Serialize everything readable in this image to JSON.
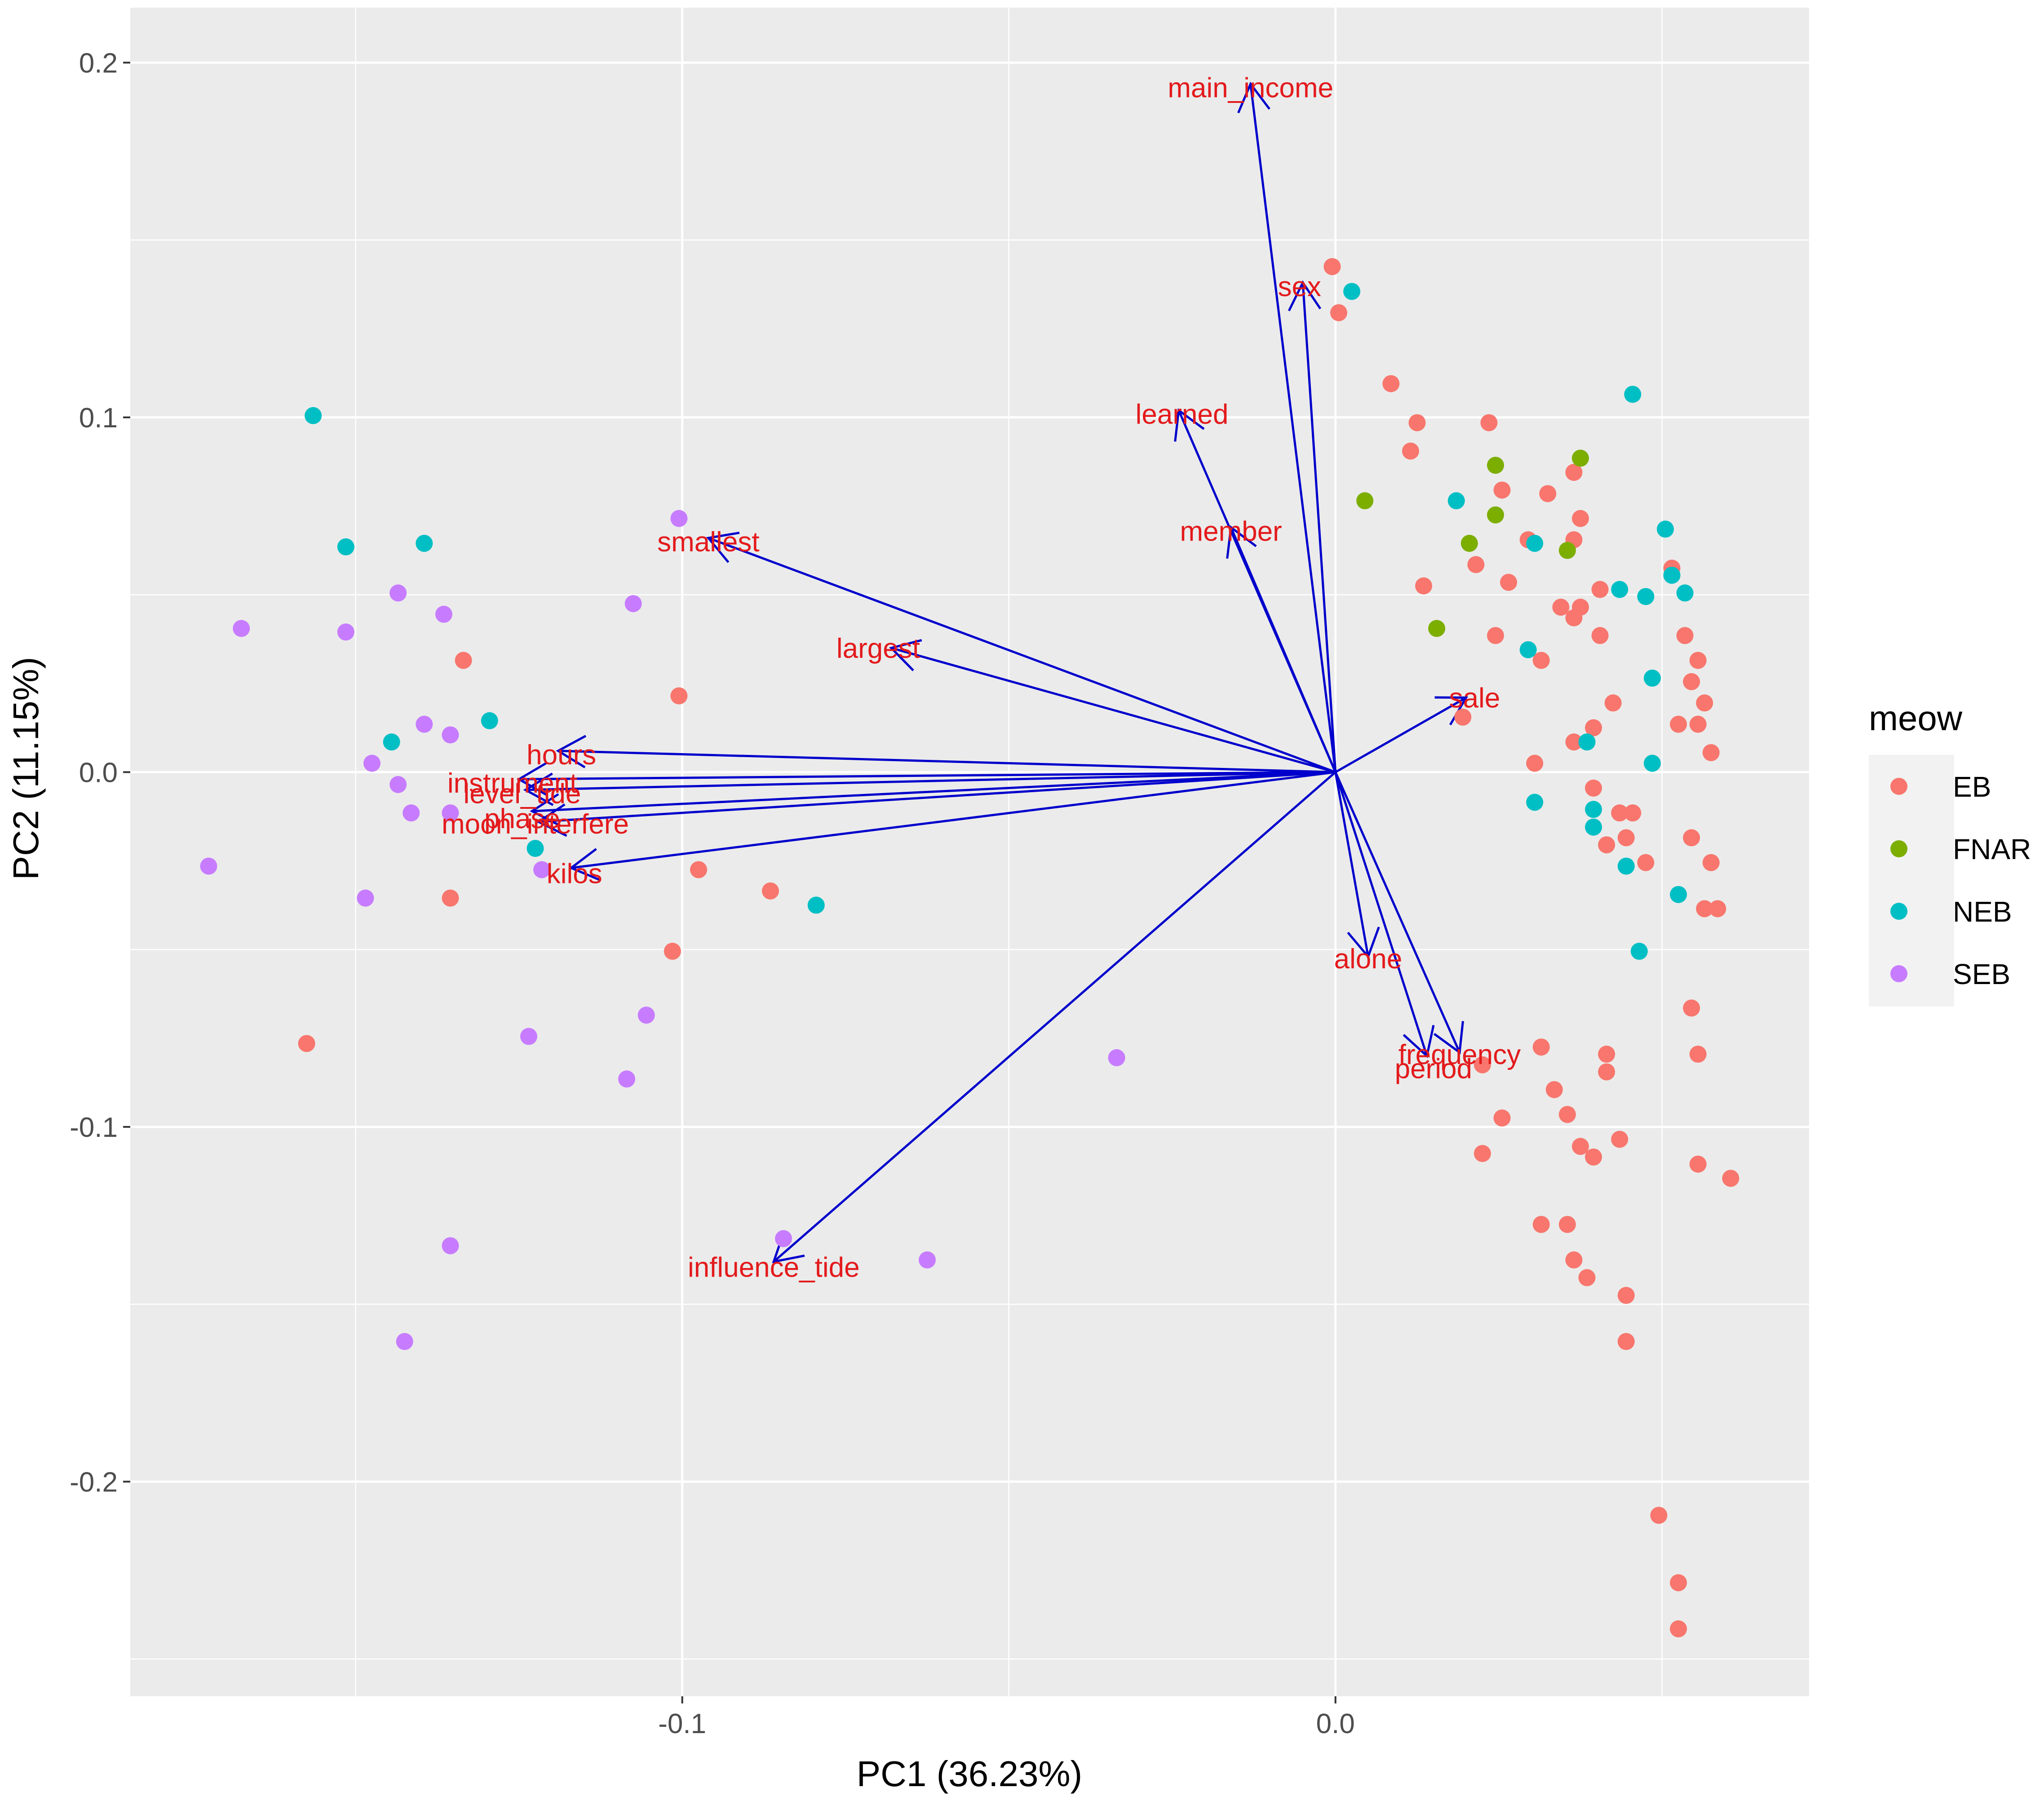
{
  "chart_data": {
    "type": "scatter",
    "subtype": "pca-biplot",
    "title": "",
    "xlabel": "PC1 (36.23%)",
    "ylabel": "PC2 (11.15%)",
    "xlim": [
      -0.1845,
      0.0725
    ],
    "ylim": [
      -0.2605,
      0.2155
    ],
    "x_ticks": [
      -0.1,
      0.0
    ],
    "x_tick_labels": [
      "-0.1",
      "0.0"
    ],
    "y_ticks": [
      -0.2,
      -0.1,
      0.0,
      0.1,
      0.2
    ],
    "y_tick_labels": [
      "-0.2",
      "-0.1",
      "0.0",
      "0.1",
      "0.2"
    ],
    "grid": true,
    "legend": {
      "title": "meow",
      "position": "right",
      "entries": [
        {
          "name": "EB",
          "color": "#F8766D"
        },
        {
          "name": "FNAR",
          "color": "#7CAE00"
        },
        {
          "name": "NEB",
          "color": "#00BFC4"
        },
        {
          "name": "SEB",
          "color": "#C77CFF"
        }
      ]
    },
    "arrow_color": "#0000CC",
    "label_color": "#E31A1C",
    "loadings": [
      {
        "name": "main_income",
        "x": -0.013,
        "y": 0.194,
        "lx": -0.013,
        "ly": 0.193
      },
      {
        "name": "sex",
        "x": -0.005,
        "y": 0.138,
        "lx": -0.0055,
        "ly": 0.137
      },
      {
        "name": "learned",
        "x": -0.024,
        "y": 0.102,
        "lx": -0.0235,
        "ly": 0.101
      },
      {
        "name": "member",
        "x": -0.016,
        "y": 0.069,
        "lx": -0.016,
        "ly": 0.068
      },
      {
        "name": "smallest",
        "x": -0.096,
        "y": 0.066,
        "lx": -0.096,
        "ly": 0.065
      },
      {
        "name": "largest",
        "x": -0.068,
        "y": 0.035,
        "lx": -0.07,
        "ly": 0.035
      },
      {
        "name": "sale",
        "x": 0.02,
        "y": 0.021,
        "lx": 0.0213,
        "ly": 0.021
      },
      {
        "name": "hours",
        "x": -0.119,
        "y": 0.006,
        "lx": -0.1185,
        "ly": 0.005
      },
      {
        "name": "instrument",
        "x": -0.125,
        "y": -0.002,
        "lx": -0.126,
        "ly": -0.003
      },
      {
        "name": "level_tide",
        "x": -0.124,
        "y": -0.005,
        "lx": -0.1245,
        "ly": -0.006
      },
      {
        "name": "phase",
        "x": -0.123,
        "y": -0.011,
        "lx": -0.1245,
        "ly": -0.013
      },
      {
        "name": "moon_interfere",
        "x": -0.122,
        "y": -0.014,
        "lx": -0.1225,
        "ly": -0.0145
      },
      {
        "name": "kilos",
        "x": -0.117,
        "y": -0.027,
        "lx": -0.1165,
        "ly": -0.0285
      },
      {
        "name": "alone",
        "x": 0.005,
        "y": -0.052,
        "lx": 0.005,
        "ly": -0.0525
      },
      {
        "name": "frequency",
        "x": 0.019,
        "y": -0.079,
        "lx": 0.019,
        "ly": -0.0795
      },
      {
        "name": "period",
        "x": 0.014,
        "y": -0.08,
        "lx": 0.015,
        "ly": -0.0835
      },
      {
        "name": "influence_tide",
        "x": -0.086,
        "y": -0.138,
        "lx": -0.086,
        "ly": -0.1395
      }
    ],
    "series": [
      {
        "name": "EB",
        "points": [
          [
            -0.0005,
            0.1425
          ],
          [
            0.0005,
            0.1295
          ],
          [
            0.0085,
            0.1095
          ],
          [
            0.0125,
            0.0985
          ],
          [
            0.0115,
            0.0905
          ],
          [
            0.0235,
            0.0985
          ],
          [
            0.0325,
            0.0785
          ],
          [
            0.0255,
            0.0795
          ],
          [
            0.0365,
            0.0845
          ],
          [
            0.0295,
            0.0655
          ],
          [
            0.0375,
            0.0715
          ],
          [
            0.0365,
            0.0655
          ],
          [
            0.0215,
            0.0585
          ],
          [
            0.0265,
            0.0535
          ],
          [
            0.0405,
            0.0515
          ],
          [
            0.0135,
            0.0525
          ],
          [
            0.0345,
            0.0465
          ],
          [
            0.0375,
            0.0465
          ],
          [
            0.0365,
            0.0435
          ],
          [
            0.0245,
            0.0385
          ],
          [
            0.0405,
            0.0385
          ],
          [
            0.0315,
            0.0315
          ],
          [
            0.0425,
            0.0195
          ],
          [
            0.0515,
            0.0575
          ],
          [
            0.0535,
            0.0385
          ],
          [
            0.0555,
            0.0315
          ],
          [
            0.0545,
            0.0255
          ],
          [
            0.0565,
            0.0195
          ],
          [
            0.0555,
            0.0135
          ],
          [
            0.0525,
            0.0135
          ],
          [
            0.0575,
            0.0055
          ],
          [
            0.0195,
            0.0155
          ],
          [
            0.0395,
            0.0125
          ],
          [
            0.0365,
            0.0085
          ],
          [
            0.0305,
            0.0025
          ],
          [
            0.0395,
            -0.0045
          ],
          [
            0.0435,
            -0.0115
          ],
          [
            0.0455,
            -0.0115
          ],
          [
            0.0445,
            -0.0185
          ],
          [
            0.0415,
            -0.0205
          ],
          [
            0.0475,
            -0.0255
          ],
          [
            0.0545,
            -0.0185
          ],
          [
            0.0575,
            -0.0255
          ],
          [
            0.0565,
            -0.0385
          ],
          [
            0.0585,
            -0.0385
          ],
          [
            0.0545,
            -0.0665
          ],
          [
            0.0555,
            -0.0795
          ],
          [
            0.0415,
            -0.0795
          ],
          [
            0.0415,
            -0.0845
          ],
          [
            0.0315,
            -0.0775
          ],
          [
            0.0225,
            -0.0825
          ],
          [
            0.0335,
            -0.0895
          ],
          [
            0.0355,
            -0.0965
          ],
          [
            0.0255,
            -0.0975
          ],
          [
            0.0375,
            -0.1055
          ],
          [
            0.0395,
            -0.1085
          ],
          [
            0.0435,
            -0.1035
          ],
          [
            0.0225,
            -0.1075
          ],
          [
            0.0555,
            -0.1105
          ],
          [
            0.0605,
            -0.1145
          ],
          [
            0.0315,
            -0.1275
          ],
          [
            0.0355,
            -0.1275
          ],
          [
            0.0365,
            -0.1375
          ],
          [
            0.0385,
            -0.1425
          ],
          [
            0.0445,
            -0.1475
          ],
          [
            0.0445,
            -0.1605
          ],
          [
            0.0495,
            -0.2095
          ],
          [
            0.0525,
            -0.2285
          ],
          [
            0.0525,
            -0.2415
          ],
          [
            -0.1005,
            0.0215
          ],
          [
            -0.1335,
            0.0315
          ],
          [
            -0.0975,
            -0.0275
          ],
          [
            -0.0865,
            -0.0335
          ],
          [
            -0.1015,
            -0.0505
          ],
          [
            -0.1355,
            -0.0355
          ],
          [
            -0.1575,
            -0.0765
          ]
        ]
      },
      {
        "name": "FNAR",
        "points": [
          [
            0.0045,
            0.0765
          ],
          [
            0.0245,
            0.0865
          ],
          [
            0.0375,
            0.0885
          ],
          [
            0.0245,
            0.0725
          ],
          [
            0.0355,
            0.0625
          ],
          [
            0.0205,
            0.0645
          ],
          [
            0.0155,
            0.0405
          ]
        ]
      },
      {
        "name": "NEB",
        "points": [
          [
            0.0025,
            0.1355
          ],
          [
            0.0455,
            0.1065
          ],
          [
            0.0185,
            0.0765
          ],
          [
            0.0305,
            0.0645
          ],
          [
            0.0505,
            0.0685
          ],
          [
            0.0515,
            0.0555
          ],
          [
            0.0535,
            0.0505
          ],
          [
            0.0435,
            0.0515
          ],
          [
            0.0475,
            0.0495
          ],
          [
            0.0485,
            0.0265
          ],
          [
            0.0295,
            0.0345
          ],
          [
            0.0385,
            0.0085
          ],
          [
            0.0485,
            0.0025
          ],
          [
            0.0305,
            -0.0085
          ],
          [
            0.0395,
            -0.0105
          ],
          [
            0.0395,
            -0.0155
          ],
          [
            0.0445,
            -0.0265
          ],
          [
            0.0525,
            -0.0345
          ],
          [
            0.0465,
            -0.0505
          ],
          [
            -0.0795,
            -0.0375
          ],
          [
            -0.1225,
            -0.0215
          ],
          [
            -0.1295,
            0.0145
          ],
          [
            -0.1445,
            0.0085
          ],
          [
            -0.1395,
            0.0645
          ],
          [
            -0.1515,
            0.0635
          ],
          [
            -0.1565,
            0.1005
          ]
        ]
      },
      {
        "name": "SEB",
        "points": [
          [
            -0.1005,
            0.0715
          ],
          [
            -0.1075,
            0.0475
          ],
          [
            -0.1675,
            0.0405
          ],
          [
            -0.1515,
            0.0395
          ],
          [
            -0.1435,
            0.0505
          ],
          [
            -0.1365,
            0.0445
          ],
          [
            -0.1395,
            0.0135
          ],
          [
            -0.1355,
            0.0105
          ],
          [
            -0.1475,
            0.0025
          ],
          [
            -0.1435,
            -0.0035
          ],
          [
            -0.1415,
            -0.0115
          ],
          [
            -0.1355,
            -0.0115
          ],
          [
            -0.1215,
            -0.0275
          ],
          [
            -0.1725,
            -0.0265
          ],
          [
            -0.1485,
            -0.0355
          ],
          [
            -0.1235,
            -0.0745
          ],
          [
            -0.1055,
            -0.0685
          ],
          [
            -0.1085,
            -0.0865
          ],
          [
            -0.0845,
            -0.1315
          ],
          [
            -0.0625,
            -0.1375
          ],
          [
            -0.1355,
            -0.1335
          ],
          [
            -0.1425,
            -0.1605
          ],
          [
            -0.0335,
            -0.0805
          ]
        ]
      }
    ]
  }
}
